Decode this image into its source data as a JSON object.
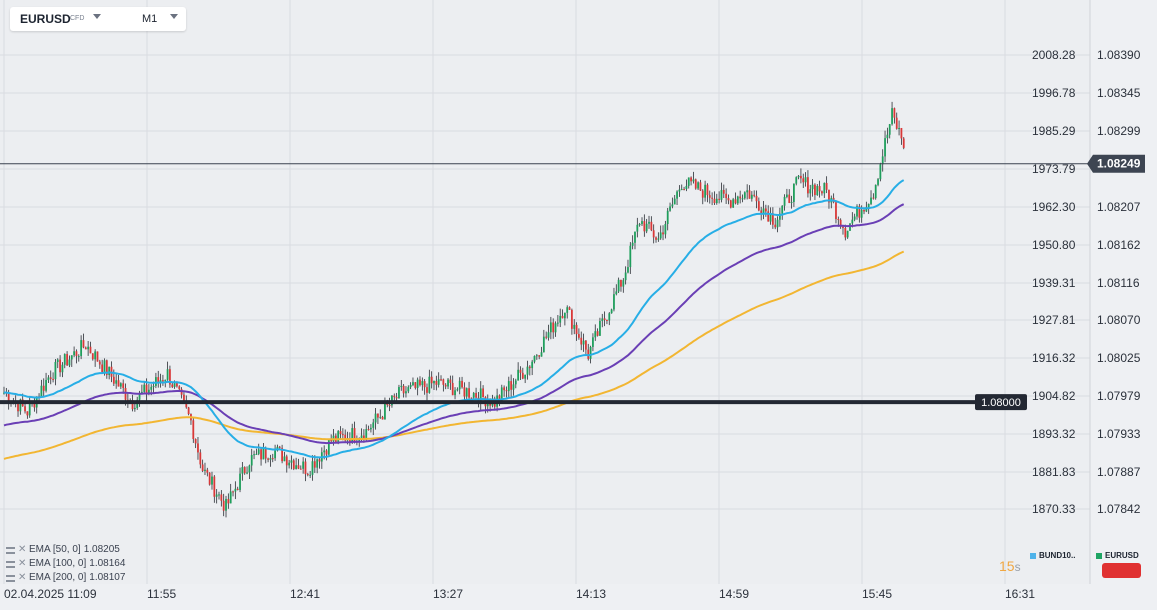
{
  "symbol": {
    "name": "EURUSD",
    "tag": "CFD",
    "timeframe": "M1"
  },
  "left_axis": {
    "ticks": [
      "2008.28",
      "1996.78",
      "1985.29",
      "1973.79",
      "1962.30",
      "1950.80",
      "1939.31",
      "1927.81",
      "1916.32",
      "1904.82",
      "1893.32",
      "1881.83",
      "1870.33"
    ]
  },
  "right_axis": {
    "ticks": [
      "1.08390",
      "1.08345",
      "1.08299",
      "1.08207",
      "1.08162",
      "1.08116",
      "1.08070",
      "1.08025",
      "1.07979",
      "1.07933",
      "1.07887",
      "1.07842"
    ]
  },
  "current_price_label": "1.08249",
  "horizontal_line_label": "1.08000",
  "time_axis": {
    "labels": [
      "02.04.2025  11:09",
      "11:55",
      "12:41",
      "13:27",
      "14:13",
      "14:59",
      "15:45",
      "16:31"
    ]
  },
  "ema_legend": [
    {
      "label": "EMA [50,  0]",
      "value": "1.08205",
      "color": "#27aee6"
    },
    {
      "label": "EMA [100,  0]",
      "value": "1.08164",
      "color": "#6a3fb5"
    },
    {
      "label": "EMA [200,  0]",
      "value": "1.08107",
      "color": "#f2b632"
    }
  ],
  "countdown": {
    "value": "15",
    "unit": "s"
  },
  "compare_legend": [
    {
      "label": "BUND10..",
      "color": "#4fb3ea"
    },
    {
      "label": "EURUSD",
      "color": "#1fa564"
    }
  ],
  "colors": {
    "up": "#1f9e5c",
    "down": "#d93838",
    "background": "#eceef1",
    "grid": "#d9dce1"
  },
  "chart_data": {
    "type": "candlestick",
    "x_start": "11:09",
    "x_end": "15:51",
    "x_interval": "1 min",
    "ylim": [
      1.0781,
      1.0842
    ],
    "right_axis_ticks": [
      1.0839,
      1.08345,
      1.08299,
      1.08207,
      1.08162,
      1.08116,
      1.0807,
      1.08025,
      1.07979,
      1.07933,
      1.07887,
      1.07842
    ],
    "price_path_keypoints": [
      [
        0,
        1.0801
      ],
      [
        10,
        1.0799
      ],
      [
        20,
        1.0803
      ],
      [
        35,
        1.0806
      ],
      [
        45,
        1.0803
      ],
      [
        55,
        1.08
      ],
      [
        70,
        1.0803
      ],
      [
        80,
        1.0798
      ],
      [
        85,
        1.0793
      ],
      [
        95,
        1.0789
      ],
      [
        105,
        1.0794
      ],
      [
        115,
        1.0795
      ],
      [
        130,
        1.0793
      ],
      [
        140,
        1.0796
      ],
      [
        155,
        1.0797
      ],
      [
        170,
        1.0801
      ],
      [
        185,
        1.0802
      ],
      [
        200,
        1.0801
      ],
      [
        210,
        1.08
      ],
      [
        225,
        1.0804
      ],
      [
        240,
        1.081
      ],
      [
        250,
        1.0805
      ],
      [
        265,
        1.0813
      ],
      [
        272,
        1.0819
      ],
      [
        280,
        1.0817
      ],
      [
        290,
        1.0823
      ],
      [
        300,
        1.0822
      ],
      [
        310,
        1.0821
      ],
      [
        318,
        1.0822
      ],
      [
        330,
        1.0819
      ],
      [
        340,
        1.0823
      ],
      [
        352,
        1.0822
      ],
      [
        360,
        1.0818
      ],
      [
        372,
        1.0822
      ],
      [
        380,
        1.083
      ],
      [
        385,
        1.0827
      ]
    ],
    "series": [
      {
        "name": "EMA [50,  0]",
        "last": 1.08205
      },
      {
        "name": "EMA [100,  0]",
        "last": 1.08164
      },
      {
        "name": "EMA [200,  0]",
        "last": 1.08107
      }
    ],
    "horizontal_line": 1.08,
    "last_price": 1.08249
  }
}
